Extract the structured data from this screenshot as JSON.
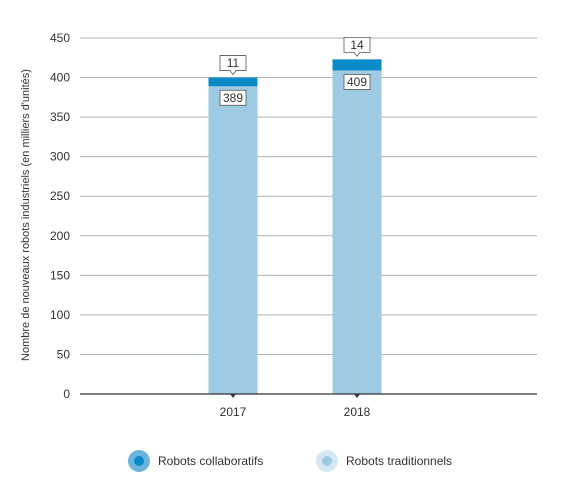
{
  "chart_data": {
    "type": "bar",
    "stacked": true,
    "categories": [
      "2017",
      "2018"
    ],
    "series": [
      {
        "name": "Robots traditionnels",
        "values": [
          389,
          409
        ],
        "color": "#9ecae3",
        "legend_outer": "#d6e8f4"
      },
      {
        "name": "Robots collaboratifs",
        "values": [
          11,
          14
        ],
        "color": "#0a8ac9",
        "legend_outer": "#6ab5de"
      }
    ],
    "ylabel": "Nombre de nouveaux robots industriels (en milliers d'unités)",
    "xlabel": "",
    "title": "",
    "ylim": [
      0,
      450
    ],
    "yticks": [
      0,
      50,
      100,
      150,
      200,
      250,
      300,
      350,
      400,
      450
    ],
    "grid": true,
    "legend_position": "bottom",
    "legend_order": [
      "Robots collaboratifs",
      "Robots traditionnels"
    ]
  }
}
